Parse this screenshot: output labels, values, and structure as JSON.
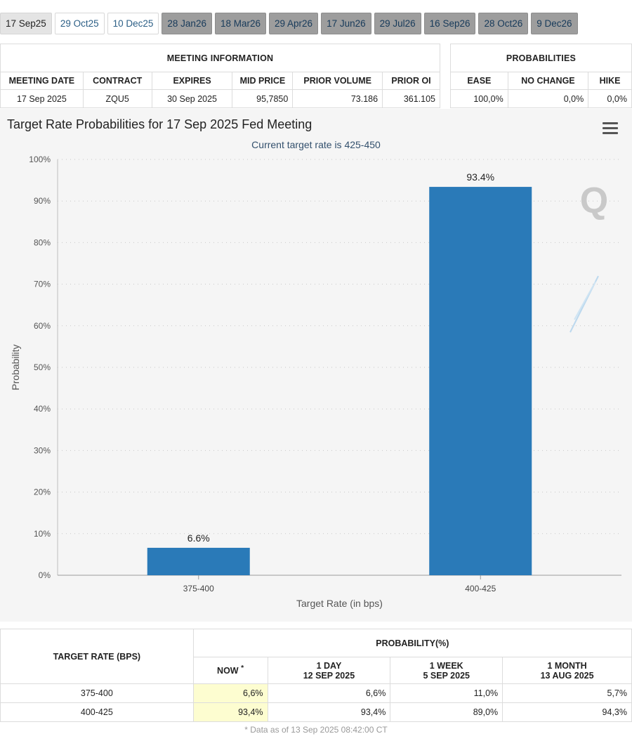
{
  "tabs": [
    {
      "label": "17 Sep25",
      "state": "active"
    },
    {
      "label": "29 Oct25",
      "state": "light"
    },
    {
      "label": "10 Dec25",
      "state": "light"
    },
    {
      "label": "28 Jan26",
      "state": "dark"
    },
    {
      "label": "18 Mar26",
      "state": "dark"
    },
    {
      "label": "29 Apr26",
      "state": "dark"
    },
    {
      "label": "17 Jun26",
      "state": "dark"
    },
    {
      "label": "29 Jul26",
      "state": "dark"
    },
    {
      "label": "16 Sep26",
      "state": "dark"
    },
    {
      "label": "28 Oct26",
      "state": "dark"
    },
    {
      "label": "9 Dec26",
      "state": "dark"
    }
  ],
  "meeting_info": {
    "title": "MEETING INFORMATION",
    "headers": [
      "MEETING DATE",
      "CONTRACT",
      "EXPIRES",
      "MID PRICE",
      "PRIOR VOLUME",
      "PRIOR OI"
    ],
    "row": [
      "17 Sep 2025",
      "ZQU5",
      "30 Sep 2025",
      "95,7850",
      "73.186",
      "361.105"
    ]
  },
  "probabilities": {
    "title": "PROBABILITIES",
    "headers": [
      "EASE",
      "NO CHANGE",
      "HIKE"
    ],
    "row": [
      "100,0%",
      "0,0%",
      "0,0%"
    ]
  },
  "chart": {
    "title": "Target Rate Probabilities for 17 Sep 2025 Fed Meeting",
    "subtitle": "Current target rate is 425-450",
    "bar_color": "#2a7ab8",
    "watermark": "Q"
  },
  "chart_data": {
    "type": "bar",
    "categories": [
      "375-400",
      "400-425"
    ],
    "values": [
      6.6,
      93.4
    ],
    "data_labels": [
      "6.6%",
      "93.4%"
    ],
    "xlabel": "Target Rate (in bps)",
    "ylabel": "Probability",
    "ylim": [
      0,
      100
    ],
    "yticks": [
      "0%",
      "10%",
      "20%",
      "30%",
      "40%",
      "50%",
      "60%",
      "70%",
      "80%",
      "90%",
      "100%"
    ],
    "grid": true
  },
  "bottom_table": {
    "target_header": "TARGET RATE (BPS)",
    "prob_header": "PROBABILITY(%)",
    "now_label": "NOW",
    "now_mark": "*",
    "cols": [
      {
        "line1": "1 DAY",
        "line2": "12 SEP 2025"
      },
      {
        "line1": "1 WEEK",
        "line2": "5 SEP 2025"
      },
      {
        "line1": "1 MONTH",
        "line2": "13 AUG 2025"
      }
    ],
    "rows": [
      {
        "rate": "375-400",
        "now": "6,6%",
        "day": "6,6%",
        "week": "11,0%",
        "month": "5,7%"
      },
      {
        "rate": "400-425",
        "now": "93,4%",
        "day": "93,4%",
        "week": "89,0%",
        "month": "94,3%"
      }
    ],
    "footnote": "* Data as of 13 Sep 2025 08:42:00 CT"
  }
}
